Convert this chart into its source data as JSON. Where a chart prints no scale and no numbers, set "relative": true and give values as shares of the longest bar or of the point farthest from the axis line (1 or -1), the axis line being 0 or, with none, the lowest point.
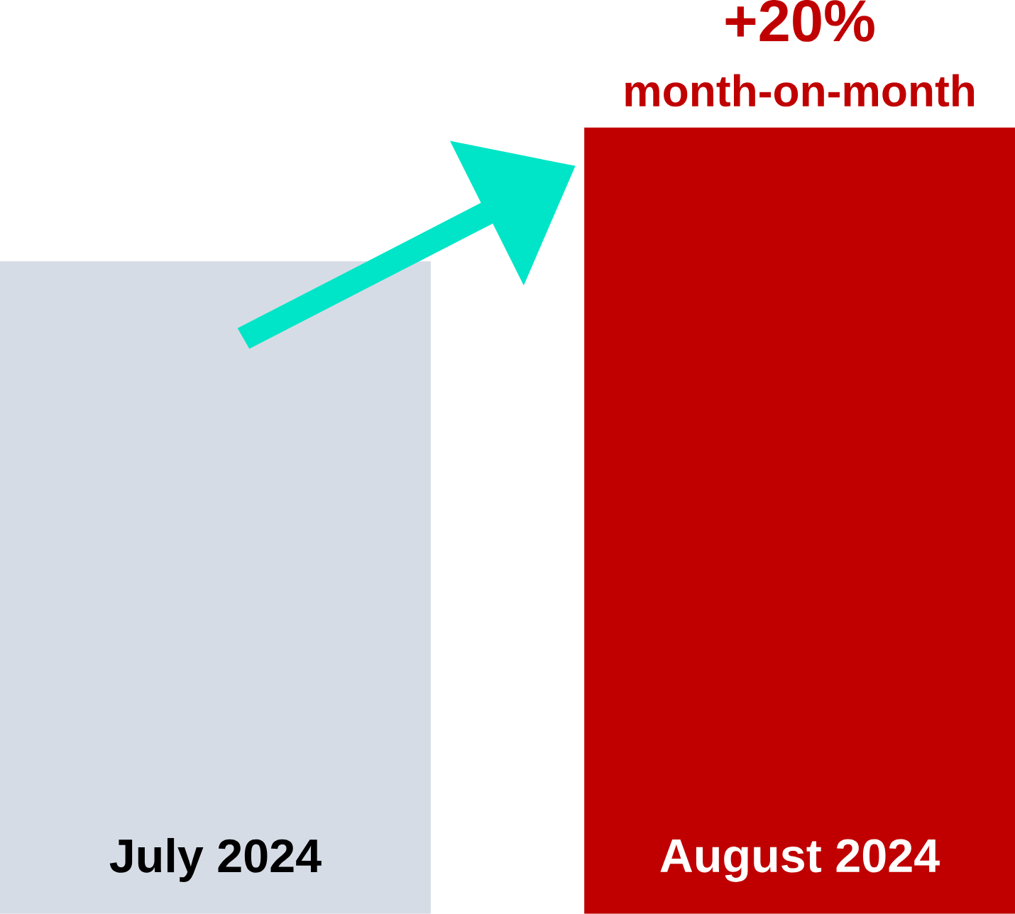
{
  "chart_data": {
    "type": "bar",
    "relative": true,
    "categories": [
      "July 2024",
      "August 2024"
    ],
    "values": [
      0.83,
      1
    ],
    "colors": [
      "#d6dce5",
      "#c00000"
    ],
    "annotations": [
      "+20%",
      "month-on-month"
    ]
  }
}
